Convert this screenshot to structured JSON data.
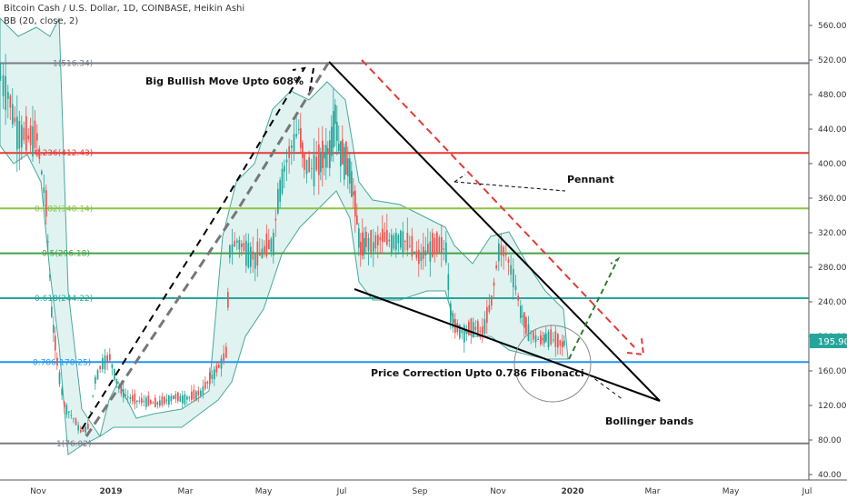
{
  "header": {
    "title": "Bitcoin Cash / U.S. Dollar, 1D, COINBASE, Heikin Ashi",
    "indicator": "BB (20, close, 2)"
  },
  "annotations": {
    "big_move": "Big Bullish Move Upto 608%",
    "pennant": "Pennant",
    "correction": "Price Correction Upto 0.786 Fibonacci",
    "bollinger": "Bollinger bands"
  },
  "colors": {
    "up": "#26a69a",
    "down": "#ef5350",
    "bb_fill": "#d8f0ee",
    "bb_line": "#4aa79a",
    "price_badge": "#26a69a"
  },
  "chart_data": {
    "type": "candlestick",
    "title": "Bitcoin Cash / U.S. Dollar, 1D, COINBASE, Heikin Ashi",
    "ylim": [
      40,
      600
    ],
    "y_ticks": [
      40,
      80,
      120,
      160,
      200,
      240,
      280,
      320,
      360,
      400,
      440,
      480,
      520,
      560
    ],
    "x_ticks": [
      "Nov",
      "2019",
      "Mar",
      "May",
      "Jul",
      "Sep",
      "Nov",
      "2020",
      "Mar",
      "May",
      "Jul"
    ],
    "last_price": "195.90",
    "fib_levels": [
      {
        "label": "1(516.34)",
        "value": 516.34,
        "color": "#787b86"
      },
      {
        "label": "0.236(412.43)",
        "value": 412.43,
        "color": "#e53935"
      },
      {
        "label": "0.382(348.14)",
        "value": 348.14,
        "color": "#8bc34a"
      },
      {
        "label": "0.5(296.18)",
        "value": 296.18,
        "color": "#43a047"
      },
      {
        "label": "0.618(244.22)",
        "value": 244.22,
        "color": "#26a69a"
      },
      {
        "label": "0.786(170.25)",
        "value": 170.25,
        "color": "#2196f3"
      },
      {
        "label": "1(76.02)",
        "value": 76.02,
        "color": "#787b86"
      }
    ],
    "price_path": [
      [
        0,
        500
      ],
      [
        8,
        480
      ],
      [
        18,
        440
      ],
      [
        28,
        430
      ],
      [
        40,
        430
      ],
      [
        50,
        350
      ],
      [
        56,
        230
      ],
      [
        62,
        170
      ],
      [
        70,
        120
      ],
      [
        80,
        105
      ],
      [
        88,
        90
      ],
      [
        96,
        95
      ],
      [
        104,
        150
      ],
      [
        112,
        170
      ],
      [
        120,
        175
      ],
      [
        130,
        140
      ],
      [
        140,
        130
      ],
      [
        150,
        125
      ],
      [
        160,
        125
      ],
      [
        170,
        122
      ],
      [
        180,
        125
      ],
      [
        190,
        130
      ],
      [
        200,
        128
      ],
      [
        210,
        130
      ],
      [
        220,
        135
      ],
      [
        230,
        150
      ],
      [
        240,
        165
      ],
      [
        248,
        180
      ],
      [
        252,
        300
      ],
      [
        260,
        310
      ],
      [
        270,
        300
      ],
      [
        280,
        290
      ],
      [
        290,
        300
      ],
      [
        300,
        310
      ],
      [
        305,
        360
      ],
      [
        312,
        395
      ],
      [
        320,
        420
      ],
      [
        328,
        440
      ],
      [
        334,
        400
      ],
      [
        342,
        395
      ],
      [
        350,
        400
      ],
      [
        356,
        410
      ],
      [
        362,
        415
      ],
      [
        368,
        460
      ],
      [
        372,
        420
      ],
      [
        378,
        405
      ],
      [
        384,
        395
      ],
      [
        390,
        350
      ],
      [
        396,
        300
      ],
      [
        402,
        310
      ],
      [
        410,
        305
      ],
      [
        420,
        315
      ],
      [
        430,
        310
      ],
      [
        440,
        315
      ],
      [
        450,
        305
      ],
      [
        460,
        290
      ],
      [
        470,
        300
      ],
      [
        480,
        305
      ],
      [
        490,
        300
      ],
      [
        495,
        230
      ],
      [
        500,
        210
      ],
      [
        510,
        205
      ],
      [
        520,
        210
      ],
      [
        530,
        205
      ],
      [
        540,
        240
      ],
      [
        548,
        300
      ],
      [
        556,
        295
      ],
      [
        564,
        270
      ],
      [
        572,
        230
      ],
      [
        578,
        210
      ],
      [
        586,
        200
      ],
      [
        594,
        195
      ],
      [
        600,
        200
      ],
      [
        608,
        196
      ],
      [
        618,
        190
      ],
      [
        622,
        196
      ]
    ]
  }
}
